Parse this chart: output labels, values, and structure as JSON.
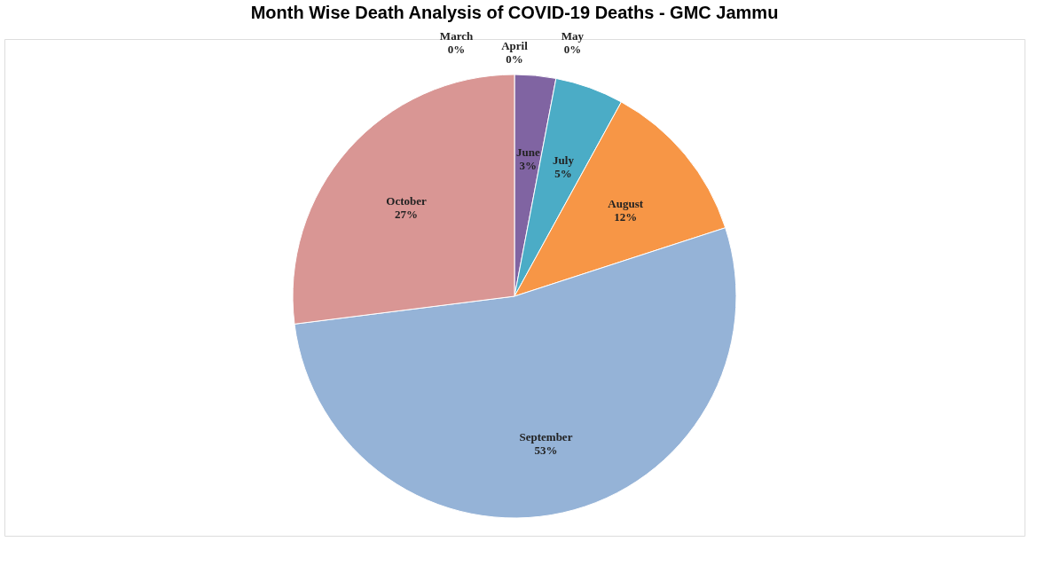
{
  "chart_data": {
    "type": "pie",
    "title": "Month Wise Death Analysis of COVID-19 Deaths - GMC Jammu",
    "categories": [
      "March",
      "April",
      "May",
      "June",
      "July",
      "August",
      "September",
      "October"
    ],
    "values": [
      0,
      0,
      0,
      3,
      5,
      12,
      53,
      27
    ],
    "value_labels": [
      "0%",
      "0%",
      "0%",
      "3%",
      "5%",
      "12%",
      "53%",
      "27%"
    ],
    "colors": [
      "#4f81bd",
      "#c0504d",
      "#9bbb59",
      "#8064a2",
      "#4bacc6",
      "#f79646",
      "#95b3d7",
      "#d99694"
    ],
    "legend": false
  }
}
